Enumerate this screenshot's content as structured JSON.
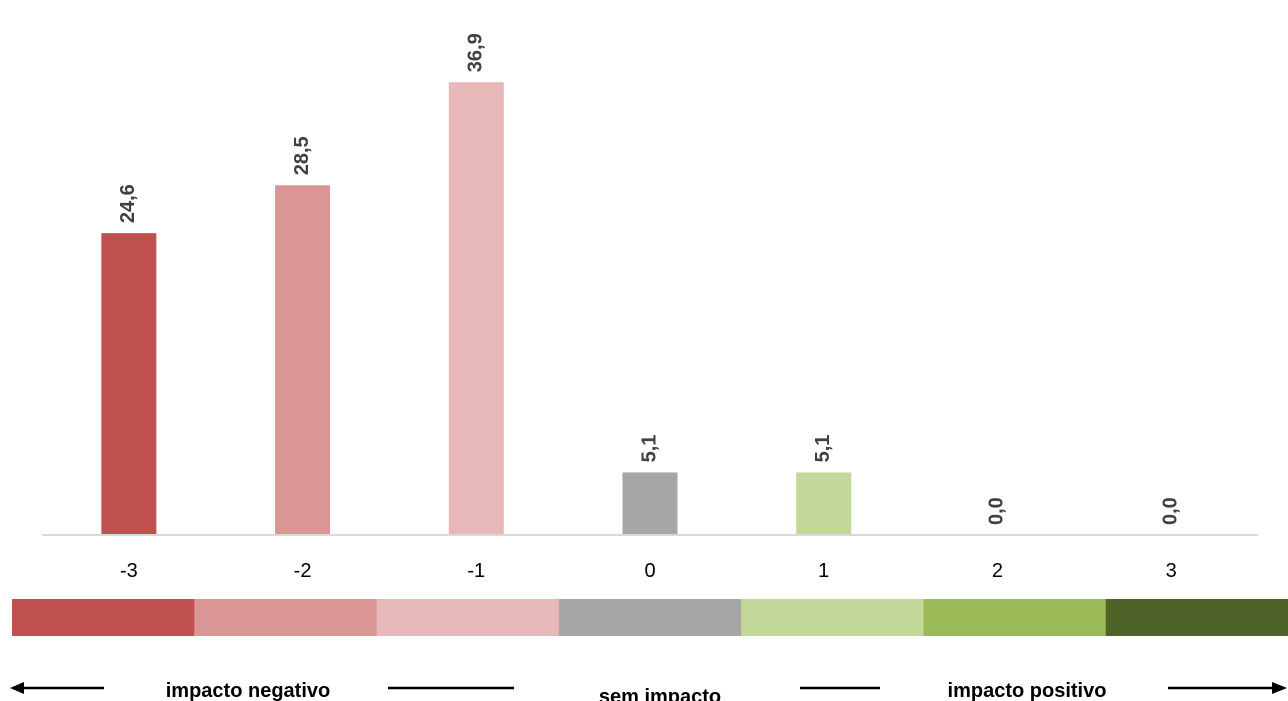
{
  "chart_data": {
    "type": "bar",
    "categories": [
      "-3",
      "-2",
      "-1",
      "0",
      "1",
      "2",
      "3"
    ],
    "values": [
      24.6,
      28.5,
      36.9,
      5.1,
      5.1,
      0.0,
      0.0
    ],
    "value_labels": [
      "24,6",
      "28,5",
      "36,9",
      "5,1",
      "5,1",
      "0,0",
      "0,0"
    ],
    "ylim": [
      0,
      37
    ],
    "grid": false,
    "legend": "none",
    "bar_colors": [
      "#c0504d",
      "#da9694",
      "#e6b8b7",
      "#a6a6a6",
      "#c4d79b",
      "#9bbb59",
      "#4f6228"
    ]
  },
  "scale_bar": {
    "colors": [
      "#c0504d",
      "#da9694",
      "#e6b8b7",
      "#a6a6a6",
      "#c4d79b",
      "#9bbb59",
      "#4f6228"
    ]
  },
  "legend": {
    "negative": "impacto negativo",
    "none": "sem impacto",
    "positive": "impacto positivo"
  }
}
